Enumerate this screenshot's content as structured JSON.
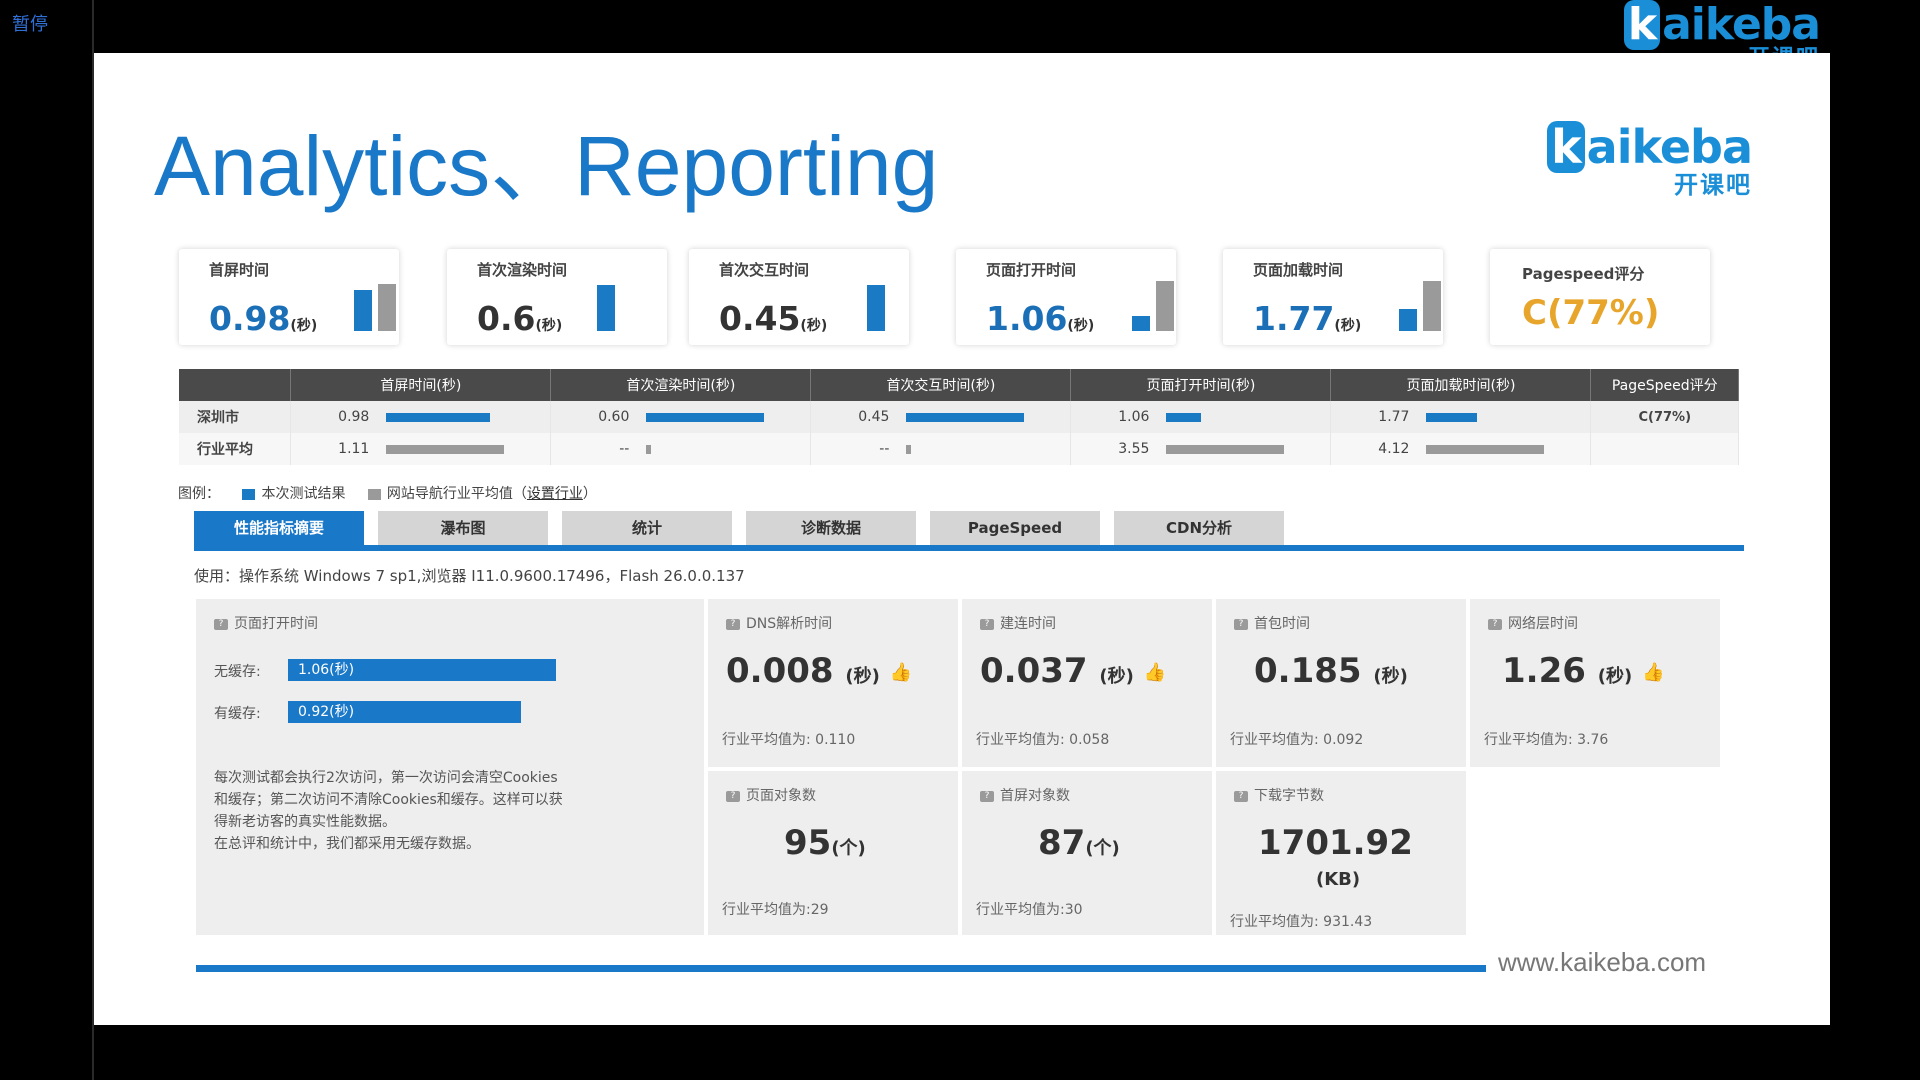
{
  "player": {
    "pause_label": "暂停"
  },
  "brand": {
    "name_k": "k",
    "name_rest": "aikeba",
    "name_cn": "开课吧",
    "url": "www.kaikeba.com"
  },
  "slide": {
    "title": "Analytics、Reporting"
  },
  "metric_cards": [
    {
      "label": "首屏时间",
      "value": "0.98",
      "unit": "(秒)",
      "bar_current": 0.82,
      "bar_avg": 0.93
    },
    {
      "label": "首次渲染时间",
      "value": "0.6",
      "unit": "(秒)",
      "bar_current": 0.92,
      "bar_avg": 0.0
    },
    {
      "label": "首次交互时间",
      "value": "0.45",
      "unit": "(秒)",
      "bar_current": 0.92,
      "bar_avg": 0.0
    },
    {
      "label": "页面打开时间",
      "value": "1.06",
      "unit": "(秒)",
      "bar_current": 0.3,
      "bar_avg": 1.0
    },
    {
      "label": "页面加载时间",
      "value": "1.77",
      "unit": "(秒)",
      "bar_current": 0.43,
      "bar_avg": 1.0
    },
    {
      "label": "Pagespeed评分",
      "value": "C(77%)"
    }
  ],
  "comparison": {
    "headers": [
      "首屏时间(秒)",
      "首次渲染时间(秒)",
      "首次交互时间(秒)",
      "页面打开时间(秒)",
      "页面加载时间(秒)",
      "PageSpeed评分"
    ],
    "rows": [
      {
        "label": "深圳市",
        "values": [
          "0.98",
          "0.60",
          "0.45",
          "1.06",
          "1.77"
        ],
        "fills": [
          0.88,
          1.0,
          1.0,
          0.3,
          0.43
        ],
        "pagespeed": "C(77%)"
      },
      {
        "label": "行业平均",
        "values": [
          "1.11",
          "--",
          "--",
          "3.55",
          "4.12"
        ],
        "fills": [
          1.0,
          0.04,
          0.04,
          1.0,
          1.0
        ],
        "pagespeed": ""
      }
    ]
  },
  "legend": {
    "prefix": "图例：",
    "current": "本次测试结果",
    "avg": "网站导航行业平均值（",
    "link": "设置行业",
    "suffix": "）"
  },
  "tabs": [
    "性能指标摘要",
    "瀑布图",
    "统计",
    "诊断数据",
    "PageSpeed",
    "CDN分析"
  ],
  "usage": "使用：操作系统 Windows 7 sp1,浏览器 I11.0.9600.17496，Flash 26.0.0.137",
  "open_time_panel": {
    "title": "页面打开时间",
    "no_cache_label": "无缓存:",
    "no_cache_value": "1.06(秒)",
    "no_cache_fill": 1.0,
    "cache_label": "有缓存:",
    "cache_value": "0.92(秒)",
    "cache_fill": 0.87,
    "note": [
      "每次测试都会执行2次访问，第一次访问会清空Cookies",
      "和缓存；第二次访问不清除Cookies和缓存。这样可以获",
      "得新老访客的真实性能数据。",
      "在总评和统计中，我们都采用无缓存数据。"
    ]
  },
  "detail_metrics": [
    {
      "title": "DNS解析时间",
      "value": "0.008",
      "unit": "(秒)",
      "avg": "行业平均值为: 0.110"
    },
    {
      "title": "建连时间",
      "value": "0.037",
      "unit": "(秒)",
      "avg": "行业平均值为: 0.058"
    },
    {
      "title": "首包时间",
      "value": "0.185",
      "unit": "(秒)",
      "avg": "行业平均值为: 0.092"
    },
    {
      "title": "网络层时间",
      "value": "1.26",
      "unit": "(秒)",
      "avg": "行业平均值为: 3.76"
    },
    {
      "title": "页面对象数",
      "value": "95",
      "unit": "(个)",
      "avg": "行业平均值为:29"
    },
    {
      "title": "首屏对象数",
      "value": "87",
      "unit": "(个)",
      "avg": "行业平均值为:30"
    },
    {
      "title": "下载字节数",
      "value": "1701.92",
      "unit": "(KB)",
      "avg": "行业平均值为: 931.43"
    }
  ],
  "colors": {
    "accent": "#1a78c8",
    "bar_current": "#1a7ac4",
    "bar_avg": "#9a9a9a",
    "pagespeed": "#e7a52b",
    "thumb": "#6ab04c"
  }
}
